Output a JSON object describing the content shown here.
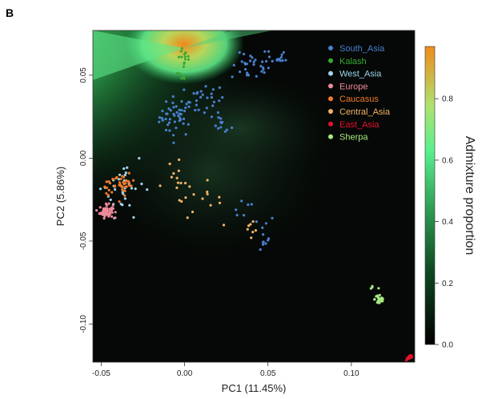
{
  "panel_label": "B",
  "colors": {
    "South_Asia": "#4a7fd0",
    "Kalash": "#3aa832",
    "West_Asia": "#9fd4ee",
    "Europe": "#f08a9a",
    "Caucasus": "#f07a2a",
    "Central_Asia": "#f4b266",
    "East_Asia": "#e8112d",
    "Sherpa": "#a8e880"
  },
  "chart_data": {
    "type": "scatter",
    "xlabel": "PC1 (11.45%)",
    "ylabel": "PC2 (5.86%)",
    "xlim": [
      -0.055,
      0.138
    ],
    "ylim": [
      -0.123,
      0.077
    ],
    "xticks": [
      -0.05,
      0.0,
      0.05,
      0.1
    ],
    "xtick_labels": [
      "-0.05",
      "0.00",
      "0.05",
      "0.10"
    ],
    "yticks": [
      -0.1,
      -0.05,
      0.0,
      0.05
    ],
    "ytick_labels": [
      "-0.10",
      "-0.05",
      "0.00",
      "0.05"
    ],
    "legend_position": "top-right",
    "background": "heatmap of admixture proportion (green high near Kalash, black low)",
    "colorbar": {
      "label": "Admixture proportion",
      "range": [
        0.0,
        0.97
      ],
      "ticks": [
        0.0,
        0.2,
        0.4,
        0.6,
        0.8
      ],
      "tick_labels": [
        "0.0",
        "0.2",
        "0.4",
        "0.6",
        "0.8"
      ]
    },
    "series": [
      {
        "name": "South_Asia",
        "clusters": [
          [
            -0.005,
            0.025,
            0.005,
            0.006,
            45
          ],
          [
            0.012,
            0.035,
            0.006,
            0.005,
            25
          ],
          [
            0.022,
            0.02,
            0.003,
            0.003,
            12
          ],
          [
            0.04,
            0.055,
            0.006,
            0.004,
            28
          ],
          [
            0.055,
            0.06,
            0.003,
            0.004,
            15
          ],
          [
            0.045,
            -0.045,
            0.005,
            0.006,
            12
          ],
          [
            0.035,
            -0.03,
            0.004,
            0.004,
            6
          ]
        ]
      },
      {
        "name": "Kalash",
        "clusters": [
          [
            0.0,
            0.058,
            0.002,
            0.008,
            18
          ]
        ]
      },
      {
        "name": "West_Asia",
        "clusters": [
          [
            -0.036,
            -0.015,
            0.006,
            0.01,
            25
          ],
          [
            -0.045,
            -0.02,
            0.004,
            0.006,
            8
          ]
        ]
      },
      {
        "name": "Europe",
        "clusters": [
          [
            -0.047,
            -0.032,
            0.002,
            0.002,
            60
          ]
        ]
      },
      {
        "name": "Caucasus",
        "clusters": [
          [
            -0.036,
            -0.016,
            0.003,
            0.003,
            30
          ],
          [
            -0.045,
            -0.017,
            0.002,
            0.002,
            12
          ]
        ]
      },
      {
        "name": "Central_Asia",
        "clusters": [
          [
            -0.005,
            -0.015,
            0.006,
            0.006,
            14
          ],
          [
            0.01,
            -0.025,
            0.006,
            0.006,
            12
          ],
          [
            0.04,
            -0.048,
            0.004,
            0.005,
            7
          ]
        ]
      },
      {
        "name": "East_Asia",
        "clusters": [
          [
            0.135,
            -0.12,
            0.001,
            0.001,
            14
          ]
        ]
      },
      {
        "name": "Sherpa",
        "clusters": [
          [
            0.117,
            -0.085,
            0.0015,
            0.002,
            28
          ],
          [
            0.113,
            -0.078,
            0.001,
            0.001,
            3
          ]
        ]
      }
    ]
  }
}
